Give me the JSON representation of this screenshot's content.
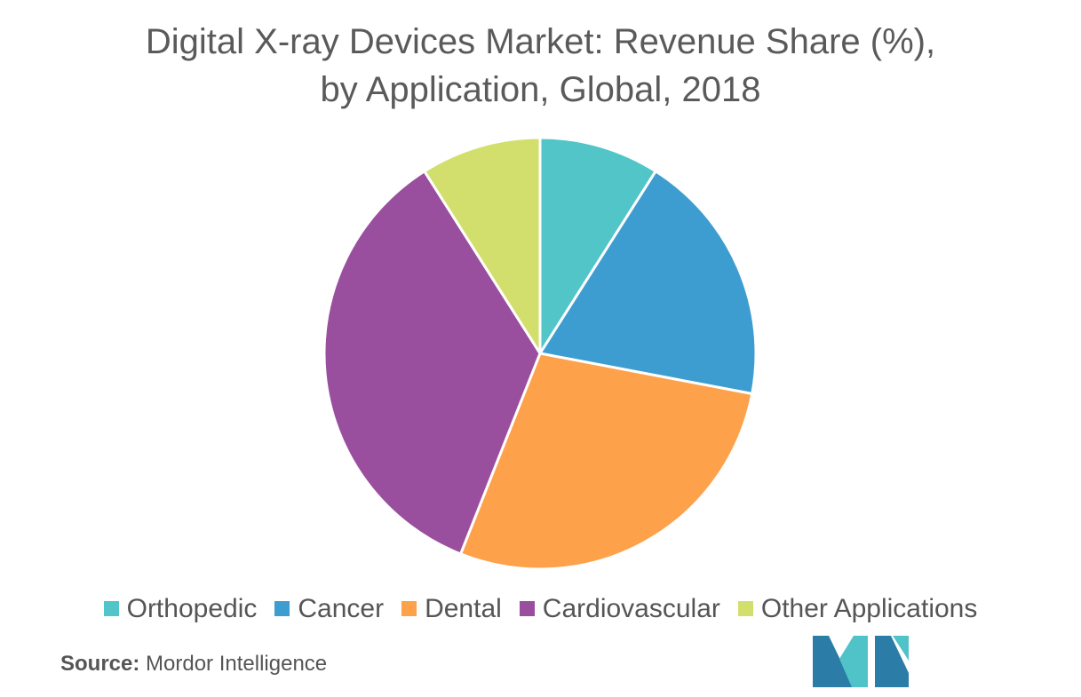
{
  "title_line1": "Digital X-ray Devices Market: Revenue Share (%),",
  "title_line2": "by Application, Global, 2018",
  "source": {
    "label": "Source:",
    "text": "Mordor Intelligence"
  },
  "chart_data": {
    "type": "pie",
    "title": "Digital X-ray Devices Market: Revenue Share (%), by Application, Global, 2018",
    "legend_position": "bottom",
    "start_angle_deg": 0,
    "direction": "clockwise",
    "slices": [
      {
        "label": "Orthopedic",
        "value": 9,
        "color": "#52C5C8"
      },
      {
        "label": "Cancer",
        "value": 19,
        "color": "#3E9DD0"
      },
      {
        "label": "Dental",
        "value": 28,
        "color": "#FDA14B"
      },
      {
        "label": "Cardiovascular",
        "value": 35,
        "color": "#9A4F9E"
      },
      {
        "label": "Other Applications",
        "value": 9,
        "color": "#D3DF6C"
      }
    ]
  },
  "logo_colors": {
    "dark": "#2B7CA7",
    "light": "#4FC3C7"
  }
}
